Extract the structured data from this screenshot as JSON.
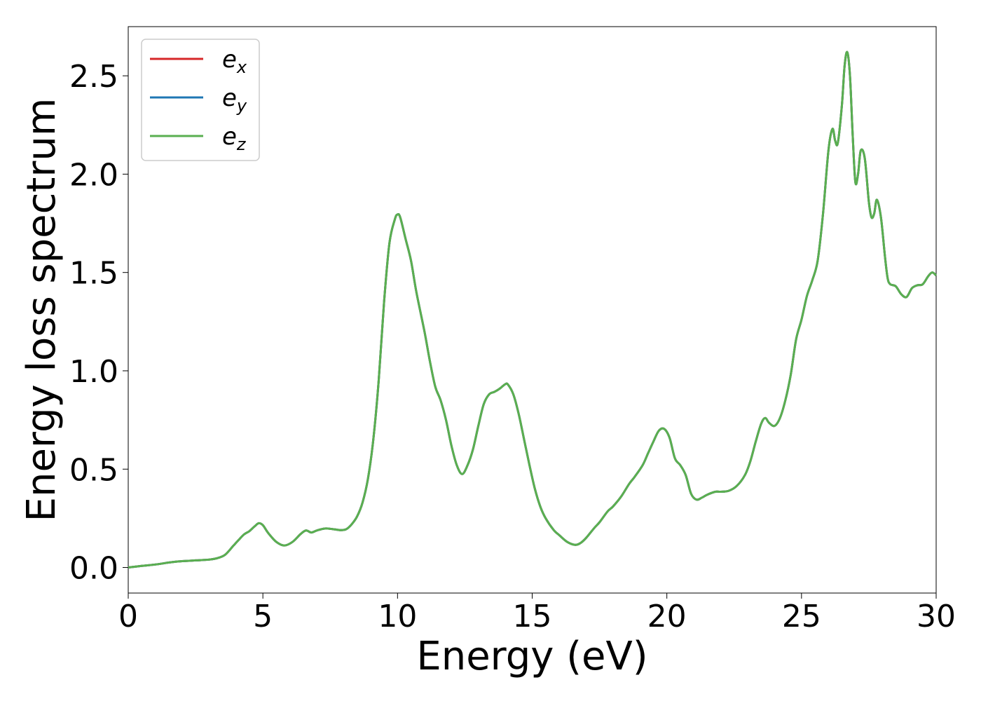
{
  "chart_data": {
    "type": "line",
    "title": "",
    "xlabel": "Energy (eV)",
    "ylabel": "Energy loss spectrum",
    "xlim": [
      0,
      30
    ],
    "ylim": [
      -0.13,
      2.75
    ],
    "xticks": [
      0,
      5,
      10,
      15,
      20,
      25,
      30
    ],
    "xtick_labels": [
      "0",
      "5",
      "10",
      "15",
      "20",
      "25",
      "30"
    ],
    "yticks": [
      0.0,
      0.5,
      1.0,
      1.5,
      2.0,
      2.5
    ],
    "ytick_labels": [
      "0.0",
      "0.5",
      "1.0",
      "1.5",
      "2.0",
      "2.5"
    ],
    "grid": false,
    "legend_position": "top-left",
    "x": [
      0,
      0.5,
      1,
      1.5,
      1.8,
      2,
      2.5,
      3,
      3.3,
      3.6,
      3.9,
      4.1,
      4.3,
      4.5,
      4.7,
      4.85,
      5.0,
      5.2,
      5.5,
      5.8,
      6.1,
      6.4,
      6.6,
      6.8,
      7.0,
      7.3,
      7.6,
      7.9,
      8.1,
      8.3,
      8.5,
      8.7,
      8.9,
      9.1,
      9.3,
      9.5,
      9.7,
      9.9,
      10.0,
      10.1,
      10.3,
      10.5,
      10.7,
      11.0,
      11.2,
      11.4,
      11.6,
      11.8,
      12.0,
      12.2,
      12.4,
      12.6,
      12.8,
      13.0,
      13.2,
      13.4,
      13.6,
      13.8,
      14.0,
      14.1,
      14.3,
      14.5,
      14.7,
      14.9,
      15.1,
      15.3,
      15.5,
      15.8,
      16.0,
      16.3,
      16.6,
      16.8,
      17.0,
      17.3,
      17.5,
      17.8,
      18.0,
      18.3,
      18.6,
      18.8,
      19.1,
      19.3,
      19.5,
      19.7,
      19.9,
      20.1,
      20.3,
      20.5,
      20.7,
      20.9,
      21.1,
      21.3,
      21.5,
      21.8,
      22.0,
      22.3,
      22.6,
      22.9,
      23.1,
      23.3,
      23.5,
      23.65,
      23.8,
      24.0,
      24.2,
      24.4,
      24.6,
      24.8,
      25.0,
      25.2,
      25.4,
      25.6,
      25.8,
      26.0,
      26.15,
      26.25,
      26.35,
      26.5,
      26.6,
      26.7,
      26.8,
      26.9,
      27.0,
      27.1,
      27.2,
      27.35,
      27.5,
      27.6,
      27.7,
      27.8,
      27.95,
      28.1,
      28.2,
      28.3,
      28.5,
      28.7,
      28.9,
      29.1,
      29.3,
      29.5,
      29.7,
      29.85,
      30.0
    ],
    "series": [
      {
        "name": "e_x",
        "color": "#d62728",
        "values": [
          0.0,
          0.008,
          0.015,
          0.025,
          0.03,
          0.032,
          0.036,
          0.04,
          0.047,
          0.065,
          0.11,
          0.14,
          0.168,
          0.185,
          0.21,
          0.225,
          0.215,
          0.175,
          0.13,
          0.112,
          0.13,
          0.17,
          0.188,
          0.178,
          0.188,
          0.198,
          0.195,
          0.19,
          0.195,
          0.22,
          0.26,
          0.33,
          0.45,
          0.65,
          0.95,
          1.35,
          1.65,
          1.77,
          1.795,
          1.78,
          1.67,
          1.56,
          1.4,
          1.2,
          1.05,
          0.92,
          0.85,
          0.75,
          0.62,
          0.52,
          0.475,
          0.52,
          0.6,
          0.72,
          0.83,
          0.88,
          0.893,
          0.91,
          0.932,
          0.93,
          0.88,
          0.78,
          0.65,
          0.52,
          0.4,
          0.31,
          0.25,
          0.19,
          0.165,
          0.13,
          0.115,
          0.125,
          0.15,
          0.2,
          0.23,
          0.285,
          0.31,
          0.36,
          0.425,
          0.46,
          0.52,
          0.58,
          0.64,
          0.695,
          0.705,
          0.66,
          0.555,
          0.52,
          0.47,
          0.375,
          0.345,
          0.355,
          0.37,
          0.385,
          0.385,
          0.39,
          0.415,
          0.47,
          0.54,
          0.64,
          0.73,
          0.76,
          0.735,
          0.72,
          0.76,
          0.85,
          0.98,
          1.16,
          1.26,
          1.38,
          1.46,
          1.56,
          1.8,
          2.12,
          2.23,
          2.17,
          2.16,
          2.35,
          2.55,
          2.62,
          2.5,
          2.2,
          1.96,
          2.0,
          2.12,
          2.08,
          1.86,
          1.78,
          1.8,
          1.87,
          1.78,
          1.58,
          1.47,
          1.44,
          1.43,
          1.39,
          1.375,
          1.42,
          1.435,
          1.44,
          1.48,
          1.5,
          1.485
        ]
      },
      {
        "name": "e_y",
        "color": "#1f77b4",
        "values": [
          0.0,
          0.008,
          0.015,
          0.025,
          0.03,
          0.032,
          0.036,
          0.04,
          0.047,
          0.065,
          0.11,
          0.14,
          0.168,
          0.185,
          0.21,
          0.225,
          0.215,
          0.175,
          0.13,
          0.112,
          0.13,
          0.17,
          0.188,
          0.178,
          0.188,
          0.198,
          0.195,
          0.19,
          0.195,
          0.22,
          0.26,
          0.33,
          0.45,
          0.65,
          0.95,
          1.35,
          1.65,
          1.77,
          1.795,
          1.78,
          1.67,
          1.56,
          1.4,
          1.2,
          1.05,
          0.92,
          0.85,
          0.75,
          0.62,
          0.52,
          0.475,
          0.52,
          0.6,
          0.72,
          0.83,
          0.88,
          0.893,
          0.91,
          0.932,
          0.93,
          0.88,
          0.78,
          0.65,
          0.52,
          0.4,
          0.31,
          0.25,
          0.19,
          0.165,
          0.13,
          0.115,
          0.125,
          0.15,
          0.2,
          0.23,
          0.285,
          0.31,
          0.36,
          0.425,
          0.46,
          0.52,
          0.58,
          0.64,
          0.695,
          0.705,
          0.66,
          0.555,
          0.52,
          0.47,
          0.375,
          0.345,
          0.355,
          0.37,
          0.385,
          0.385,
          0.39,
          0.415,
          0.47,
          0.54,
          0.64,
          0.73,
          0.76,
          0.735,
          0.72,
          0.76,
          0.85,
          0.98,
          1.16,
          1.26,
          1.38,
          1.46,
          1.56,
          1.8,
          2.12,
          2.23,
          2.17,
          2.16,
          2.35,
          2.55,
          2.62,
          2.5,
          2.2,
          1.96,
          2.0,
          2.12,
          2.08,
          1.86,
          1.78,
          1.8,
          1.87,
          1.78,
          1.58,
          1.47,
          1.44,
          1.43,
          1.39,
          1.375,
          1.42,
          1.435,
          1.44,
          1.48,
          1.5,
          1.485
        ]
      },
      {
        "name": "e_z",
        "color": "#5aaf50",
        "values": [
          0.0,
          0.008,
          0.015,
          0.025,
          0.03,
          0.032,
          0.036,
          0.04,
          0.047,
          0.065,
          0.11,
          0.14,
          0.168,
          0.185,
          0.21,
          0.225,
          0.215,
          0.175,
          0.13,
          0.112,
          0.13,
          0.17,
          0.188,
          0.178,
          0.188,
          0.198,
          0.195,
          0.19,
          0.195,
          0.22,
          0.26,
          0.33,
          0.45,
          0.65,
          0.95,
          1.35,
          1.65,
          1.77,
          1.795,
          1.78,
          1.67,
          1.56,
          1.4,
          1.2,
          1.05,
          0.92,
          0.85,
          0.75,
          0.62,
          0.52,
          0.475,
          0.52,
          0.6,
          0.72,
          0.83,
          0.88,
          0.893,
          0.91,
          0.932,
          0.93,
          0.88,
          0.78,
          0.65,
          0.52,
          0.4,
          0.31,
          0.25,
          0.19,
          0.165,
          0.13,
          0.115,
          0.125,
          0.15,
          0.2,
          0.23,
          0.285,
          0.31,
          0.36,
          0.425,
          0.46,
          0.52,
          0.58,
          0.64,
          0.695,
          0.705,
          0.66,
          0.555,
          0.52,
          0.47,
          0.375,
          0.345,
          0.355,
          0.37,
          0.385,
          0.385,
          0.39,
          0.415,
          0.47,
          0.54,
          0.64,
          0.73,
          0.76,
          0.735,
          0.72,
          0.76,
          0.85,
          0.98,
          1.16,
          1.26,
          1.38,
          1.46,
          1.56,
          1.8,
          2.12,
          2.23,
          2.17,
          2.16,
          2.35,
          2.55,
          2.62,
          2.5,
          2.2,
          1.96,
          2.0,
          2.12,
          2.08,
          1.86,
          1.78,
          1.8,
          1.87,
          1.78,
          1.58,
          1.47,
          1.44,
          1.43,
          1.39,
          1.375,
          1.42,
          1.435,
          1.44,
          1.48,
          1.5,
          1.485
        ]
      }
    ],
    "legend": [
      {
        "base": "e",
        "sub": "x",
        "color": "#d62728"
      },
      {
        "base": "e",
        "sub": "y",
        "color": "#1f77b4"
      },
      {
        "base": "e",
        "sub": "z",
        "color": "#5aaf50"
      }
    ]
  }
}
